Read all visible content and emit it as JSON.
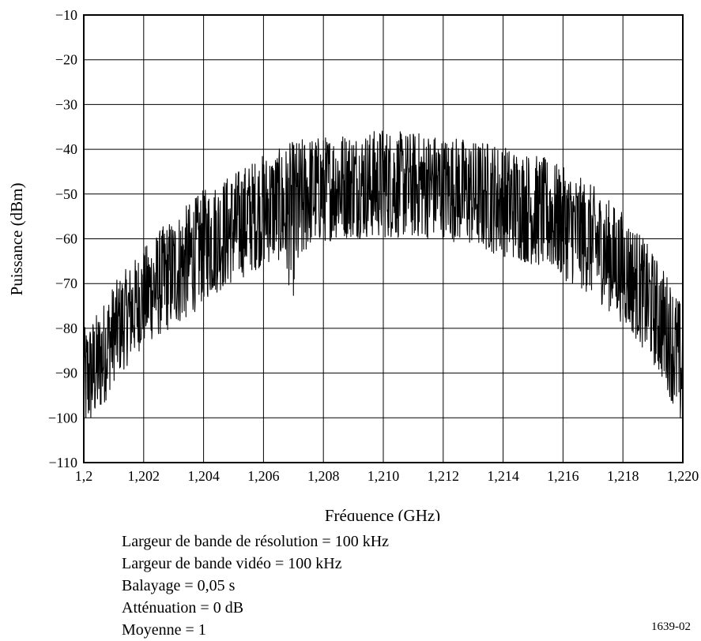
{
  "chart_data": {
    "type": "line",
    "title": "",
    "xlabel": "Fréquence (GHz)",
    "ylabel": "Puissance (dBm)",
    "xlim": [
      1.2,
      1.22
    ],
    "ylim": [
      -110,
      -10
    ],
    "grid": true,
    "xticks": [
      1.2,
      1.202,
      1.204,
      1.206,
      1.208,
      1.21,
      1.212,
      1.214,
      1.216,
      1.218,
      1.22
    ],
    "xtick_labels": [
      "1,2",
      "1,202",
      "1,204",
      "1,206",
      "1,208",
      "1,210",
      "1,212",
      "1,214",
      "1,216",
      "1,218",
      "1,220"
    ],
    "yticks": [
      -10,
      -20,
      -30,
      -40,
      -50,
      -60,
      -70,
      -80,
      -90,
      -100,
      -110
    ],
    "ytick_labels": [
      "−10",
      "−20",
      "−30",
      "−40",
      "−50",
      "−60",
      "−70",
      "−80",
      "−90",
      "−100",
      "−110"
    ],
    "series": [
      {
        "x": [
          1.2,
          1.2005,
          1.201,
          1.2015,
          1.202,
          1.2025,
          1.203,
          1.2035,
          1.204,
          1.2045,
          1.205,
          1.2055,
          1.206,
          1.2065,
          1.207,
          1.2075,
          1.208,
          1.2085,
          1.209,
          1.2095,
          1.21,
          1.2105,
          1.211,
          1.2115,
          1.212,
          1.2125,
          1.213,
          1.2135,
          1.214,
          1.2145,
          1.215,
          1.2155,
          1.216,
          1.2165,
          1.217,
          1.2175,
          1.218,
          1.2185,
          1.219,
          1.2195,
          1.22
        ],
        "peak": [
          -80,
          -76,
          -70,
          -66,
          -62,
          -58,
          -55,
          -52,
          -49,
          -47,
          -45,
          -43,
          -41,
          -40,
          -38,
          -37,
          -37,
          -36,
          -36,
          -36,
          -35,
          -36,
          -36,
          -36,
          -37,
          -37,
          -38,
          -38,
          -39,
          -40,
          -41,
          -42,
          -44,
          -46,
          -48,
          -51,
          -54,
          -58,
          -63,
          -68,
          -75
        ],
        "trough": [
          -104,
          -100,
          -92,
          -88,
          -84,
          -82,
          -80,
          -78,
          -74,
          -72,
          -70,
          -68,
          -66,
          -65,
          -73,
          -62,
          -61,
          -60,
          -60,
          -60,
          -60,
          -60,
          -60,
          -60,
          -60,
          -61,
          -62,
          -63,
          -64,
          -65,
          -66,
          -67,
          -69,
          -71,
          -73,
          -76,
          -79,
          -83,
          -88,
          -94,
          -104
        ]
      }
    ]
  },
  "notes": [
    "Largeur de bande de résolution = 100 kHz",
    "Largeur de bande vidéo = 100 kHz",
    "Balayage = 0,05 s",
    "Atténuation = 0 dB",
    "Moyenne = 1"
  ],
  "figure_id": "1639-02",
  "colors": {
    "trace": "#000000",
    "grid": "#000000",
    "frame": "#000000"
  }
}
